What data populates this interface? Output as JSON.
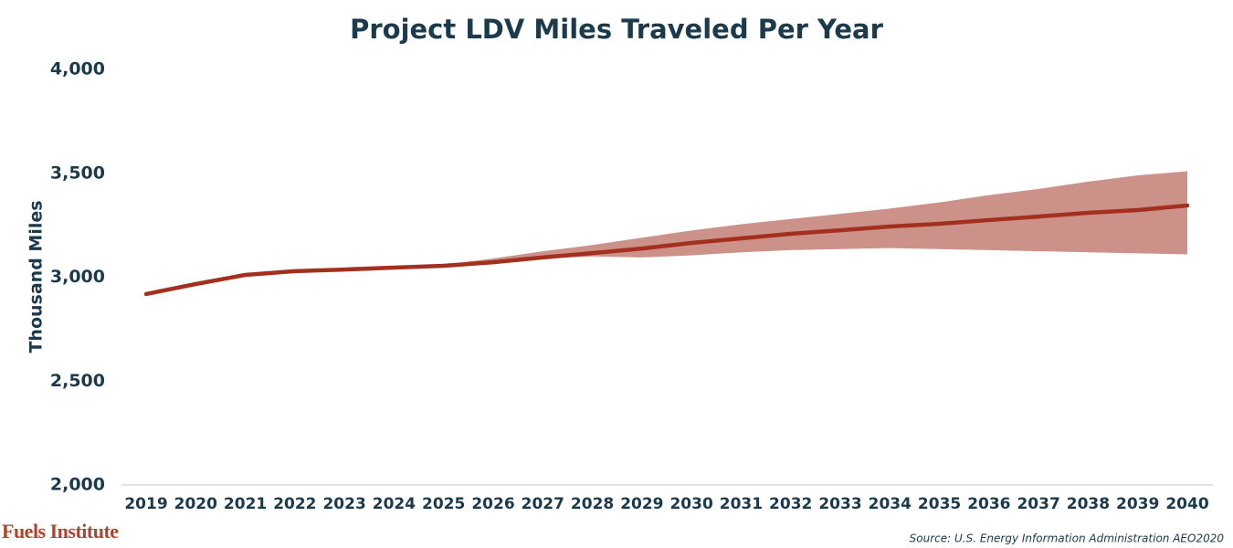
{
  "chart_data": {
    "type": "line",
    "title": "Project LDV Miles Traveled Per Year",
    "y_label": "Thousand Miles",
    "categories": [
      "2019",
      "2020",
      "2021",
      "2022",
      "2023",
      "2024",
      "2025",
      "2026",
      "2027",
      "2028",
      "2029",
      "2030",
      "2031",
      "2032",
      "2033",
      "2034",
      "2035",
      "2036",
      "2037",
      "2038",
      "2039",
      "2040"
    ],
    "series": [
      {
        "color": "#a3301f",
        "values": [
          2919,
          2967,
          3011,
          3029,
          3037,
          3046,
          3055,
          3072,
          3095,
          3116,
          3138,
          3165,
          3187,
          3209,
          3226,
          3244,
          3257,
          3275,
          3292,
          3310,
          3323,
          3345
        ]
      }
    ],
    "band": {
      "color": "#cc928a",
      "upper": [
        null,
        null,
        null,
        null,
        null,
        null,
        3060,
        3090,
        3125,
        3155,
        3190,
        3225,
        3255,
        3280,
        3305,
        3330,
        3360,
        3395,
        3425,
        3460,
        3490,
        3510
      ],
      "lower": [
        null,
        null,
        null,
        null,
        null,
        null,
        3050,
        3075,
        3090,
        3100,
        3095,
        3105,
        3120,
        3130,
        3135,
        3140,
        3135,
        3130,
        3125,
        3120,
        3115,
        3110
      ]
    },
    "ylim": [
      2000,
      4000
    ],
    "yticks": [
      {
        "value": 2000,
        "label": "2,000"
      },
      {
        "value": 2500,
        "label": "2,500"
      },
      {
        "value": 3000,
        "label": "3,000"
      },
      {
        "value": 3500,
        "label": "3,500"
      },
      {
        "value": 4000,
        "label": "4,000"
      }
    ],
    "logo": "Fuels Institute",
    "source": "Source: U.S. Energy Information Administration AEO2020"
  }
}
